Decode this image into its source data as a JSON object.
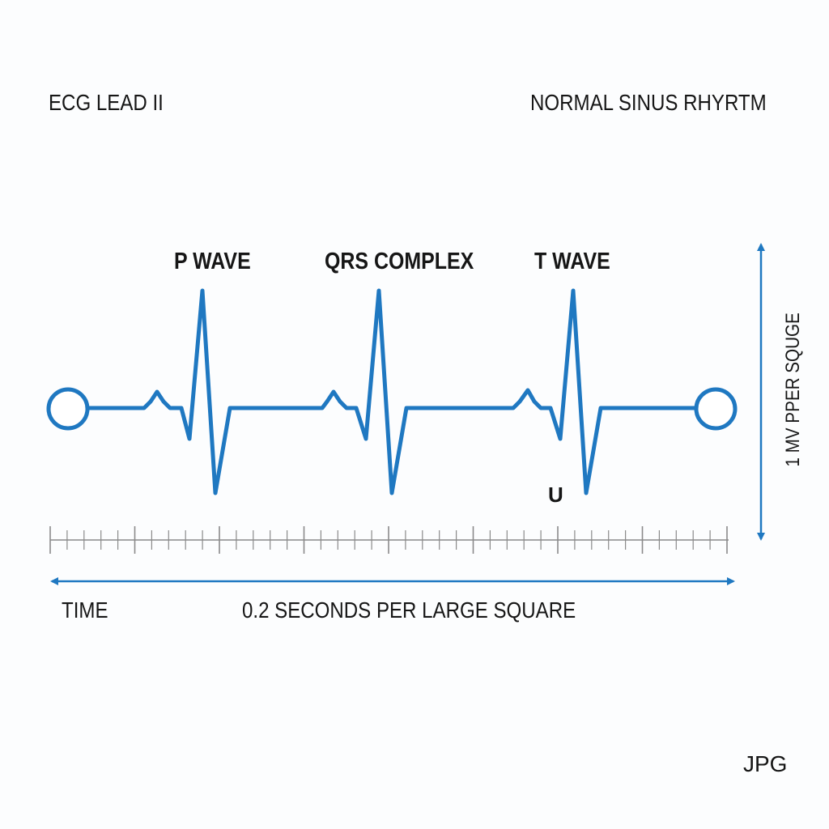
{
  "header": {
    "left_title": "ECG LEAD II",
    "right_title": "NORMAL SINUS RHYRTM"
  },
  "waveform": {
    "labels": {
      "p_wave": "P WAVE",
      "qrs_complex": "QRS COMPLEX",
      "t_wave": "T WAVE",
      "u": "U"
    },
    "beat_count": 3,
    "color": "#1f78c1"
  },
  "axes": {
    "time_label": "TIME",
    "time_scale": "0.2 SECONDS PER LARGE SQUARE",
    "voltage_scale": "1 MV PPER SQUGE",
    "axis_color": "#1f78c1",
    "tick_color": "#8a8a8a"
  },
  "footer": {
    "format_label": "JPG"
  }
}
